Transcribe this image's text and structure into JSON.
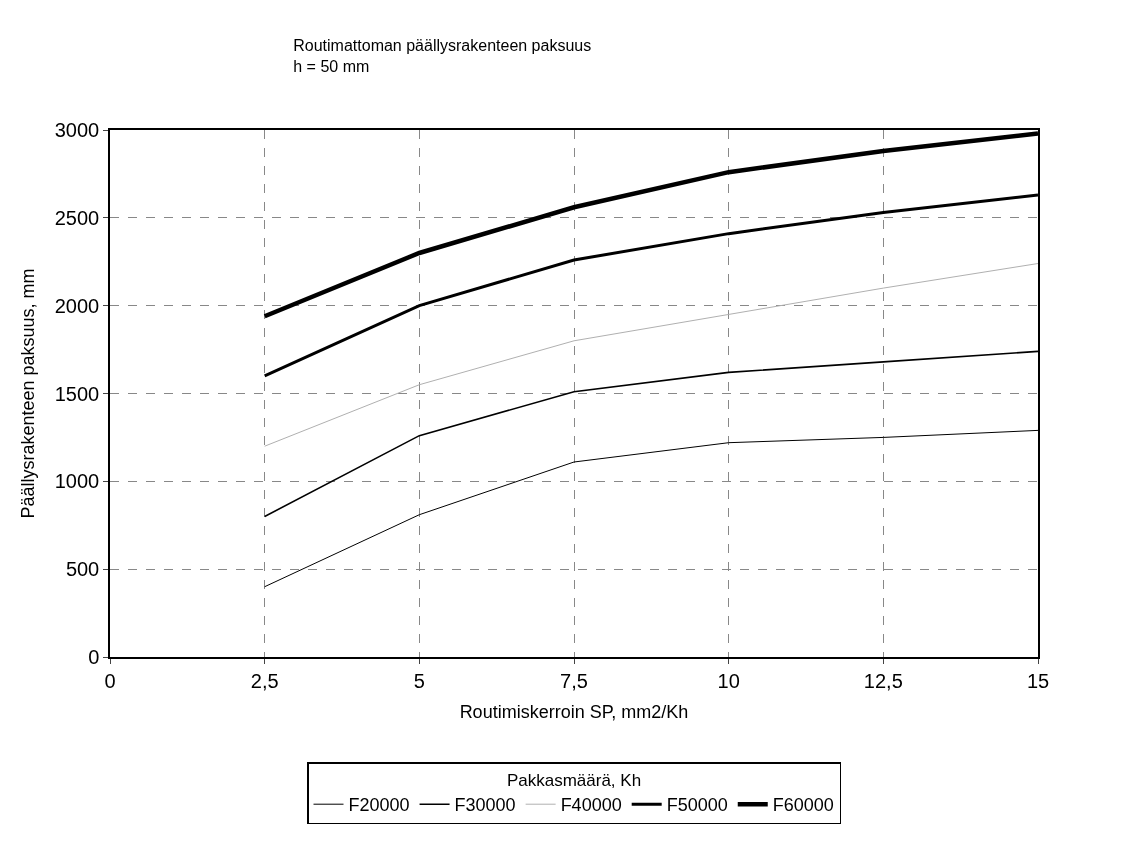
{
  "chart_data": {
    "type": "line",
    "title": "Routimattoman päällysrakenteen paksuus",
    "subtitle": "h = 50 mm",
    "xlabel": "Routimiskerroin SP, mm2/Kh",
    "ylabel": "Päällysrakenteen paksuus, mm",
    "legend_title": "Pakkasmäärä, Kh",
    "x": [
      2.5,
      5,
      7.5,
      10,
      12.5,
      15
    ],
    "xlim": [
      0,
      15
    ],
    "xticks": [
      0,
      {
        "value": 2.5,
        "label": "2,5"
      },
      5,
      {
        "value": 7.5,
        "label": "7,5"
      },
      10,
      {
        "value": 12.5,
        "label": "12,5"
      },
      15
    ],
    "ylim": [
      0,
      3000
    ],
    "yticks": [
      0,
      500,
      1000,
      1500,
      2000,
      2500,
      3000
    ],
    "grid": true,
    "legend": "bottom",
    "line_style": "solid",
    "series": [
      {
        "name": "F20000",
        "color": "#000000",
        "values": [
          400,
          810,
          1110,
          1220,
          1250,
          1290
        ]
      },
      {
        "name": "F30000",
        "color": "#000000",
        "values": [
          800,
          1260,
          1510,
          1620,
          1680,
          1740
        ]
      },
      {
        "name": "F40000",
        "color": "#b0b0b0",
        "values": [
          1200,
          1550,
          1800,
          1950,
          2100,
          2240
        ]
      },
      {
        "name": "F50000",
        "color": "#000000",
        "values": [
          1600,
          2000,
          2260,
          2410,
          2530,
          2630
        ]
      },
      {
        "name": "F60000",
        "color": "#000000",
        "values": [
          1940,
          2300,
          2560,
          2760,
          2880,
          2980
        ]
      }
    ]
  }
}
